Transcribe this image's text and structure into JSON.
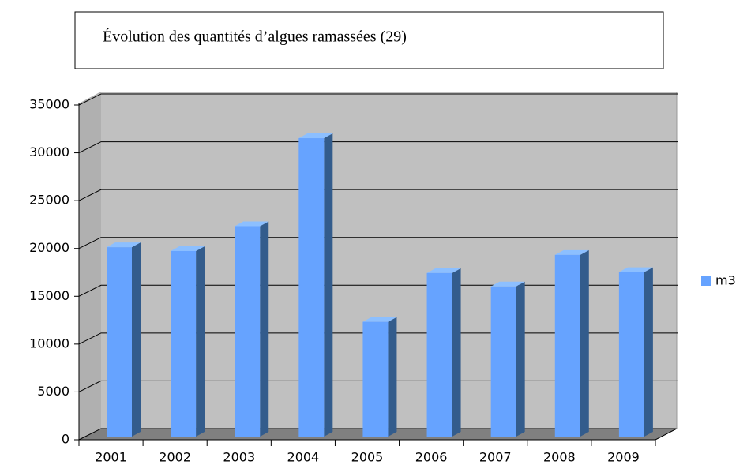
{
  "chart_data": {
    "type": "bar3d",
    "title": "Évolution des quantités d’algues ramassées (29)",
    "categories": [
      "2001",
      "2002",
      "2003",
      "2004",
      "2005",
      "2006",
      "2007",
      "2008",
      "2009"
    ],
    "series": [
      {
        "name": "m3",
        "color": "#66a3ff",
        "values": [
          19800,
          19400,
          22000,
          31200,
          12000,
          17100,
          15700,
          19000,
          17200
        ]
      }
    ],
    "ylim": [
      0,
      35000
    ],
    "yticks": [
      0,
      5000,
      10000,
      15000,
      20000,
      25000,
      30000,
      35000
    ],
    "grid": true,
    "legend": "right"
  }
}
